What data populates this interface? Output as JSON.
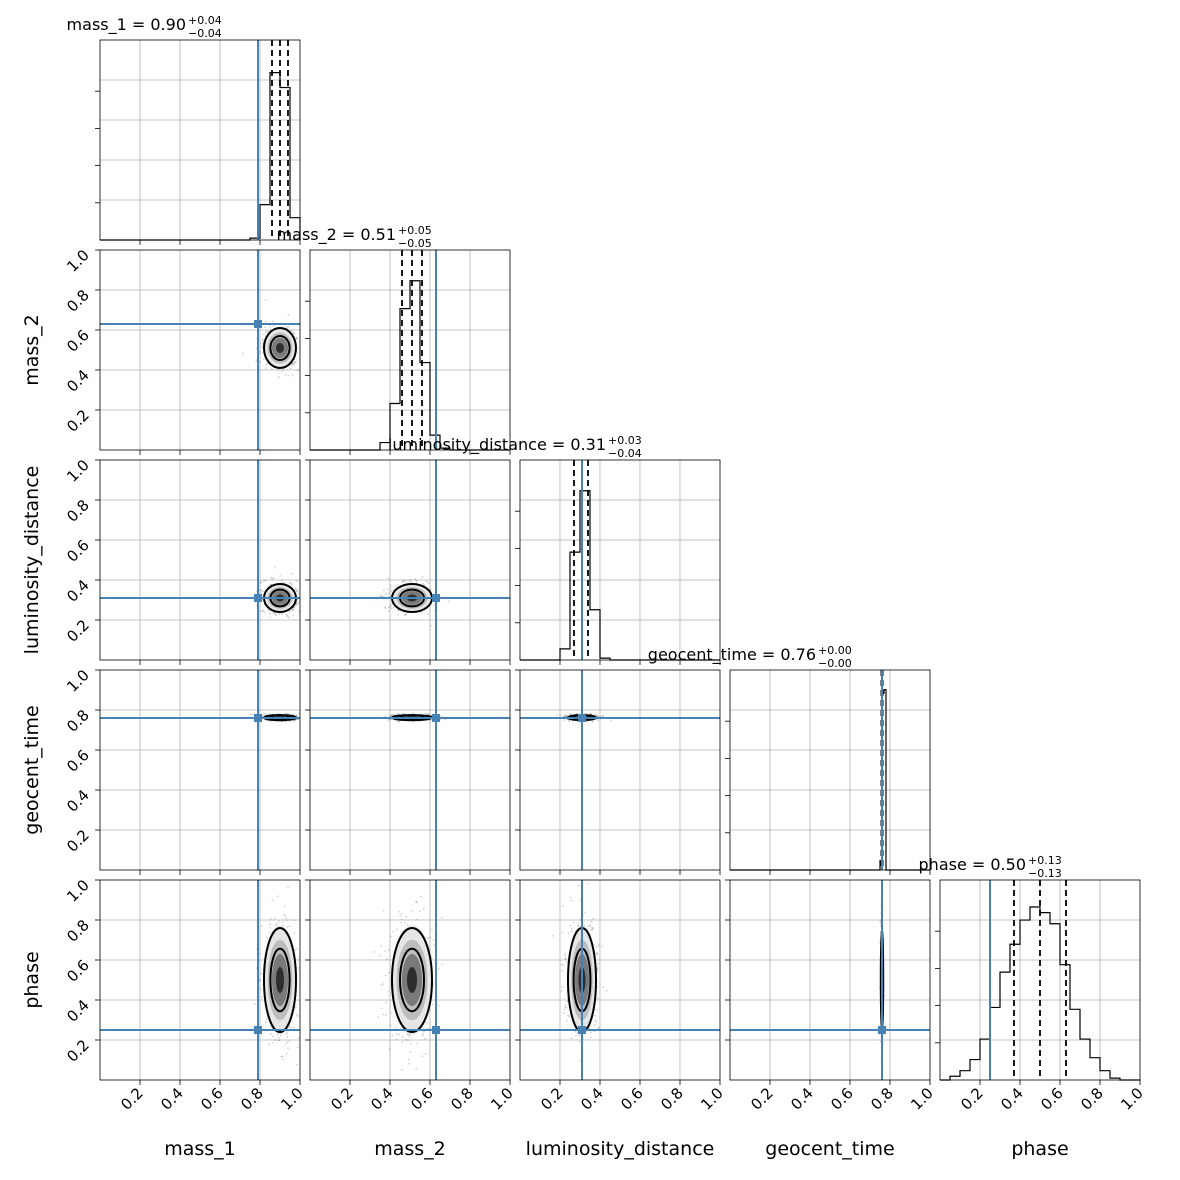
{
  "figure": {
    "type": "corner-plot"
  },
  "colors": {
    "truth": "#4682b4",
    "hist": "#000000",
    "grid": "#b0b0b0",
    "quantile": "#000000"
  },
  "chart_data": {
    "type": "corner",
    "parameters": [
      "mass_1",
      "mass_2",
      "luminosity_distance",
      "geocent_time",
      "phase"
    ],
    "axis_range": [
      0,
      1
    ],
    "tick_labels": [
      "0.2",
      "0.4",
      "0.6",
      "0.8",
      "1.0"
    ],
    "tick_values": [
      0.2,
      0.4,
      0.6,
      0.8,
      1.0
    ],
    "grid": true,
    "truths": {
      "mass_1": 0.79,
      "mass_2": 0.63,
      "luminosity_distance": 0.31,
      "geocent_time": 0.76,
      "phase": 0.25
    },
    "titles": [
      {
        "param": "mass_1",
        "text": "mass_1 = 0.90",
        "plus": "+0.04",
        "minus": "−0.04"
      },
      {
        "param": "mass_2",
        "text": "mass_2 = 0.51",
        "plus": "+0.05",
        "minus": "−0.05"
      },
      {
        "param": "luminosity_distance",
        "text": "luminosity_distance = 0.31",
        "plus": "+0.03",
        "minus": "−0.04"
      },
      {
        "param": "geocent_time",
        "text": "geocent_time = 0.76",
        "plus": "+0.00",
        "minus": "−0.00"
      },
      {
        "param": "phase",
        "text": "phase = 0.50",
        "plus": "+0.13",
        "minus": "−0.13"
      }
    ],
    "quantiles": {
      "mass_1": [
        0.86,
        0.9,
        0.94
      ],
      "mass_2": [
        0.46,
        0.51,
        0.56
      ],
      "luminosity_distance": [
        0.27,
        0.31,
        0.34
      ],
      "geocent_time": [
        0.757,
        0.76,
        0.763
      ],
      "phase": [
        0.37,
        0.5,
        0.63
      ]
    },
    "histograms": {
      "mass_1": {
        "edges": [
          0.75,
          0.8,
          0.85,
          0.9,
          0.95,
          1.0
        ],
        "counts": [
          0.01,
          0.19,
          0.9,
          0.82,
          0.12
        ]
      },
      "mass_2": {
        "edges": [
          0.35,
          0.4,
          0.45,
          0.5,
          0.55,
          0.6,
          0.65,
          0.7
        ],
        "counts": [
          0.04,
          0.25,
          0.76,
          0.91,
          0.47,
          0.08,
          0.01
        ]
      },
      "luminosity_distance": {
        "edges": [
          0.2,
          0.25,
          0.3,
          0.35,
          0.4,
          0.45
        ],
        "counts": [
          0.06,
          0.58,
          0.91,
          0.27,
          0.01
        ]
      },
      "geocent_time": {
        "edges": [
          0.74,
          0.75,
          0.76,
          0.77,
          0.78,
          0.79
        ],
        "counts": [
          0.0,
          0.05,
          0.95,
          0.97,
          0.0
        ]
      },
      "phase": {
        "edges": [
          0.05,
          0.1,
          0.15,
          0.2,
          0.25,
          0.3,
          0.35,
          0.4,
          0.45,
          0.5,
          0.55,
          0.6,
          0.65,
          0.7,
          0.75,
          0.8,
          0.85,
          0.9
        ],
        "counts": [
          0.02,
          0.05,
          0.11,
          0.22,
          0.39,
          0.58,
          0.73,
          0.86,
          0.93,
          0.9,
          0.84,
          0.62,
          0.38,
          0.22,
          0.12,
          0.05,
          0.01
        ]
      }
    },
    "posterior_2d": [
      {
        "x": "mass_1",
        "y": "mass_2",
        "cx": 0.9,
        "cy": 0.51,
        "sx": 0.04,
        "sy": 0.05
      },
      {
        "x": "mass_1",
        "y": "luminosity_distance",
        "cx": 0.9,
        "cy": 0.31,
        "sx": 0.04,
        "sy": 0.035
      },
      {
        "x": "mass_2",
        "y": "luminosity_distance",
        "cx": 0.51,
        "cy": 0.31,
        "sx": 0.05,
        "sy": 0.035
      },
      {
        "x": "mass_1",
        "y": "geocent_time",
        "cx": 0.9,
        "cy": 0.762,
        "sx": 0.04,
        "sy": 0.003
      },
      {
        "x": "mass_2",
        "y": "geocent_time",
        "cx": 0.51,
        "cy": 0.762,
        "sx": 0.05,
        "sy": 0.003
      },
      {
        "x": "luminosity_distance",
        "y": "geocent_time",
        "cx": 0.31,
        "cy": 0.762,
        "sx": 0.035,
        "sy": 0.003
      },
      {
        "x": "mass_1",
        "y": "phase",
        "cx": 0.9,
        "cy": 0.5,
        "sx": 0.04,
        "sy": 0.13
      },
      {
        "x": "mass_2",
        "y": "phase",
        "cx": 0.51,
        "cy": 0.5,
        "sx": 0.05,
        "sy": 0.13
      },
      {
        "x": "luminosity_distance",
        "y": "phase",
        "cx": 0.31,
        "cy": 0.5,
        "sx": 0.035,
        "sy": 0.13
      },
      {
        "x": "geocent_time",
        "y": "phase",
        "cx": 0.76,
        "cy": 0.5,
        "sx": 0.003,
        "sy": 0.13
      }
    ]
  }
}
